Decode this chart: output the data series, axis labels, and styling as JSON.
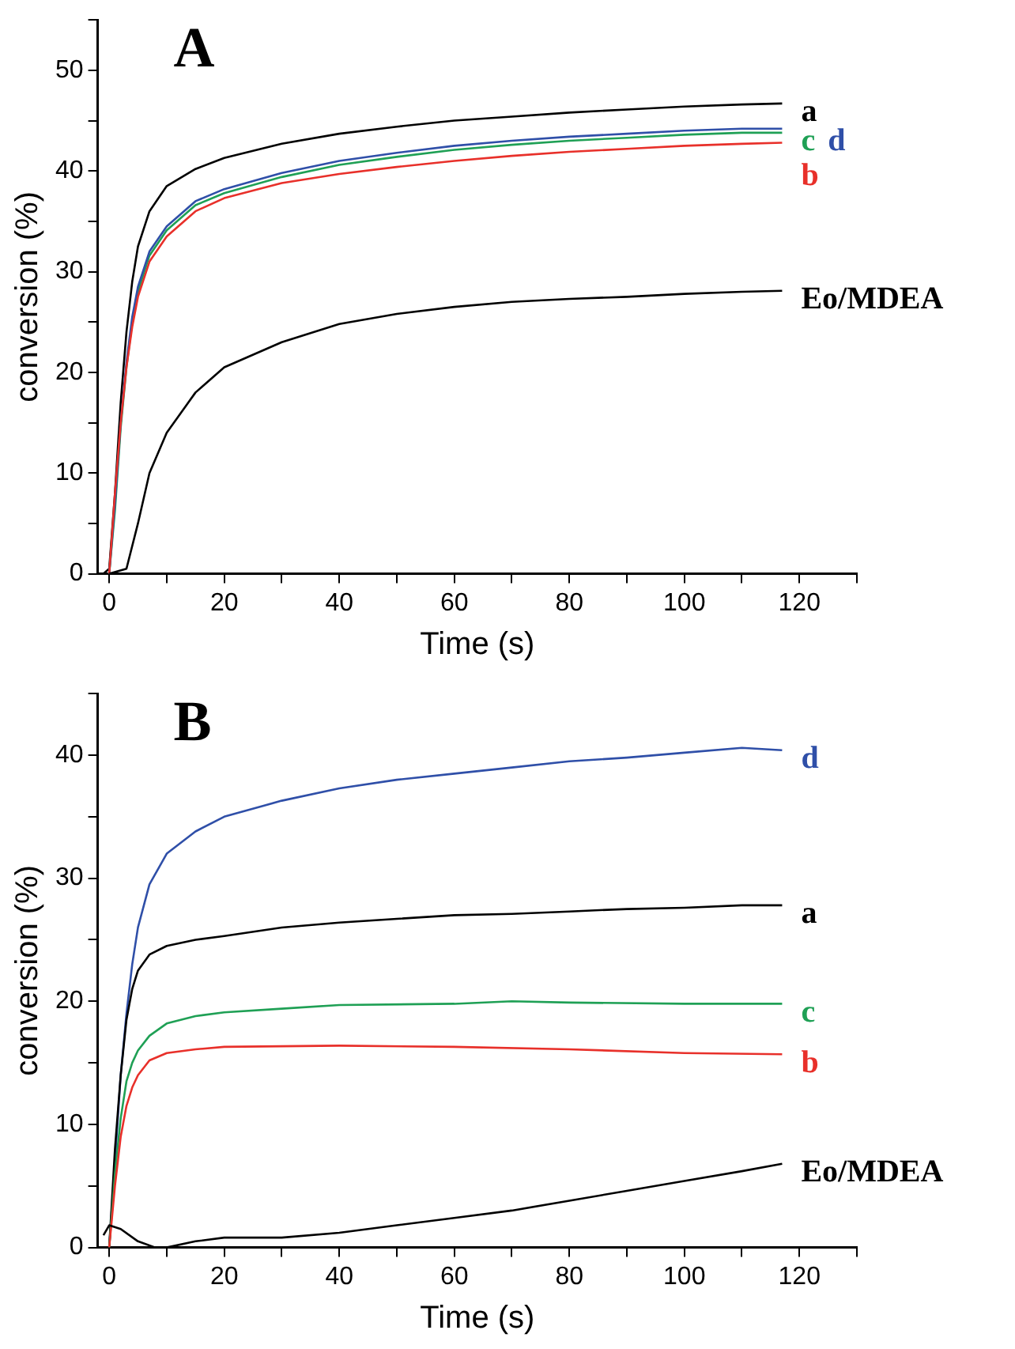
{
  "chart_data": [
    {
      "type": "line",
      "title": "A",
      "xlabel": "Time (s)",
      "ylabel": "conversion (%)",
      "xlim": [
        -2,
        130
      ],
      "ylim": [
        0,
        55
      ],
      "xticks": [
        0,
        {
          "value": 10,
          "label": null
        },
        20,
        {
          "value": 30,
          "label": null
        },
        40,
        {
          "value": 50,
          "label": null
        },
        60,
        {
          "value": 70,
          "label": null
        },
        80,
        {
          "value": 90,
          "label": null
        },
        100,
        {
          "value": 110,
          "label": null
        },
        120,
        {
          "value": 130,
          "label": null
        }
      ],
      "yticks": [
        0,
        {
          "value": 5,
          "label": null
        },
        10,
        {
          "value": 15,
          "label": null
        },
        20,
        {
          "value": 25,
          "label": null
        },
        30,
        {
          "value": 35,
          "label": null
        },
        40,
        {
          "value": 45,
          "label": null
        },
        50,
        {
          "value": 55,
          "label": null
        }
      ],
      "grid": false,
      "legend": false,
      "marker": "none",
      "line_style": "solid",
      "series": [
        {
          "name": "a",
          "color": "#000000",
          "x": [
            -1,
            0,
            1,
            2,
            3,
            4,
            5,
            7,
            10,
            15,
            20,
            30,
            40,
            50,
            60,
            70,
            80,
            90,
            100,
            110,
            117
          ],
          "values": [
            0,
            0.5,
            8,
            17,
            24,
            29,
            32.5,
            36,
            38.5,
            40.2,
            41.3,
            42.7,
            43.7,
            44.4,
            45,
            45.4,
            45.8,
            46.1,
            46.4,
            46.6,
            46.7
          ]
        },
        {
          "name": "c",
          "color": "#1fa055",
          "x": [
            0,
            1,
            2,
            3,
            4,
            5,
            7,
            10,
            15,
            20,
            30,
            40,
            50,
            60,
            70,
            80,
            90,
            100,
            110,
            117
          ],
          "values": [
            0,
            6.3,
            14.5,
            20.5,
            25,
            28,
            31.6,
            34.1,
            36.6,
            37.8,
            39.4,
            40.6,
            41.4,
            42.1,
            42.6,
            43,
            43.3,
            43.6,
            43.8,
            43.8
          ]
        },
        {
          "name": "d",
          "color": "#2f4fa8",
          "x": [
            0,
            1,
            2,
            3,
            4,
            5,
            7,
            10,
            15,
            20,
            30,
            40,
            50,
            60,
            70,
            80,
            90,
            100,
            110,
            117
          ],
          "values": [
            0,
            7,
            15,
            21,
            25.5,
            28.5,
            32,
            34.5,
            37,
            38.2,
            39.8,
            41,
            41.8,
            42.5,
            43,
            43.4,
            43.7,
            44,
            44.2,
            44.2
          ]
        },
        {
          "name": "b",
          "color": "#e8302a",
          "x": [
            0,
            1,
            2,
            3,
            4,
            5,
            7,
            10,
            15,
            20,
            30,
            40,
            50,
            60,
            70,
            80,
            90,
            100,
            110,
            117
          ],
          "values": [
            0,
            8,
            15,
            20.5,
            24.5,
            27.5,
            31,
            33.5,
            36,
            37.3,
            38.8,
            39.7,
            40.4,
            41,
            41.5,
            41.9,
            42.2,
            42.5,
            42.7,
            42.8
          ]
        },
        {
          "name": "Eo/MDEA",
          "color": "#000000",
          "x": [
            0,
            3,
            5,
            7,
            10,
            15,
            20,
            30,
            40,
            50,
            60,
            70,
            80,
            90,
            100,
            110,
            117
          ],
          "values": [
            0,
            0.5,
            5,
            10,
            14,
            18,
            20.5,
            23,
            24.8,
            25.8,
            26.5,
            27,
            27.3,
            27.5,
            27.8,
            28,
            28.1
          ]
        }
      ]
    },
    {
      "type": "line",
      "title": "B",
      "xlabel": "Time (s)",
      "ylabel": "conversion (%)",
      "xlim": [
        -2,
        130
      ],
      "ylim": [
        0,
        45
      ],
      "xticks": [
        0,
        {
          "value": 10,
          "label": null
        },
        20,
        {
          "value": 30,
          "label": null
        },
        40,
        {
          "value": 50,
          "label": null
        },
        60,
        {
          "value": 70,
          "label": null
        },
        80,
        {
          "value": 90,
          "label": null
        },
        100,
        {
          "value": 110,
          "label": null
        },
        120,
        {
          "value": 130,
          "label": null
        }
      ],
      "yticks": [
        0,
        {
          "value": 5,
          "label": null
        },
        10,
        {
          "value": 15,
          "label": null
        },
        20,
        {
          "value": 25,
          "label": null
        },
        30,
        {
          "value": 35,
          "label": null
        },
        40,
        {
          "value": 45,
          "label": null
        }
      ],
      "grid": false,
      "legend": false,
      "marker": "none",
      "line_style": "solid",
      "series": [
        {
          "name": "d",
          "color": "#2f4fa8",
          "x": [
            0,
            1,
            2,
            3,
            4,
            5,
            7,
            10,
            15,
            20,
            30,
            40,
            50,
            60,
            70,
            80,
            90,
            100,
            110,
            117
          ],
          "values": [
            0,
            7,
            14,
            19,
            23,
            26,
            29.5,
            32,
            33.8,
            35,
            36.3,
            37.3,
            38,
            38.5,
            39,
            39.5,
            39.8,
            40.2,
            40.6,
            40.4
          ]
        },
        {
          "name": "a",
          "color": "#000000",
          "x": [
            0,
            1,
            2,
            3,
            4,
            5,
            7,
            10,
            15,
            20,
            30,
            40,
            50,
            60,
            70,
            80,
            90,
            100,
            110,
            117
          ],
          "values": [
            0,
            8,
            14,
            18.5,
            21,
            22.5,
            23.8,
            24.5,
            25,
            25.3,
            26,
            26.4,
            26.7,
            27,
            27.1,
            27.3,
            27.5,
            27.6,
            27.8,
            27.8
          ]
        },
        {
          "name": "c",
          "color": "#1fa055",
          "x": [
            0,
            1,
            2,
            3,
            4,
            5,
            7,
            10,
            15,
            20,
            30,
            40,
            60,
            70,
            80,
            100,
            117
          ],
          "values": [
            0,
            6,
            10.5,
            13.5,
            15,
            16,
            17.2,
            18.2,
            18.8,
            19.1,
            19.4,
            19.7,
            19.8,
            20,
            19.9,
            19.8,
            19.8
          ]
        },
        {
          "name": "b",
          "color": "#e8302a",
          "x": [
            0,
            1,
            2,
            3,
            4,
            5,
            7,
            10,
            15,
            20,
            40,
            60,
            80,
            100,
            117
          ],
          "values": [
            0,
            5,
            9,
            11.5,
            13,
            14,
            15.2,
            15.8,
            16.1,
            16.3,
            16.4,
            16.3,
            16.1,
            15.8,
            15.7
          ]
        },
        {
          "name": "Eo/MDEA",
          "color": "#000000",
          "x": [
            -1,
            0,
            2,
            5,
            8,
            10,
            15,
            20,
            30,
            40,
            50,
            60,
            70,
            80,
            90,
            100,
            110,
            117
          ],
          "values": [
            1,
            1.8,
            1.5,
            0.5,
            0,
            0,
            0.5,
            0.8,
            0.8,
            1.2,
            1.8,
            2.4,
            3,
            3.8,
            4.6,
            5.4,
            6.2,
            6.8
          ]
        }
      ]
    }
  ]
}
